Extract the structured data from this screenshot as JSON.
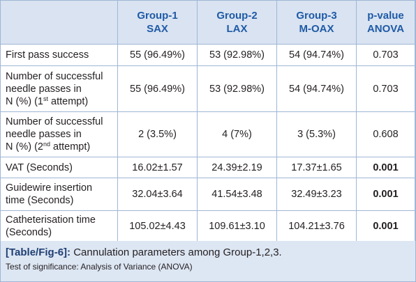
{
  "table": {
    "headers": [
      {
        "line1": "",
        "line2": ""
      },
      {
        "line1": "Group-1",
        "line2": "SAX"
      },
      {
        "line1": "Group-2",
        "line2": "LAX"
      },
      {
        "line1": "Group-3",
        "line2": "M-OAX"
      },
      {
        "line1": "p-value",
        "line2": "ANOVA"
      }
    ],
    "rows": [
      {
        "label": "First pass success",
        "g1": "55 (96.49%)",
        "g2": "53 (92.98%)",
        "g3": "54 (94.74%)",
        "p": "0.703"
      },
      {
        "label_a": "Number of successful",
        "label_b": "needle passes in",
        "label_c": "N (%) (1",
        "label_sup": "st",
        "label_d": " attempt)",
        "g1": "55 (96.49%)",
        "g2": "53 (92.98%)",
        "g3": "54 (94.74%)",
        "p": "0.703"
      },
      {
        "label_a": "Number of successful",
        "label_b": "needle passes in",
        "label_c": "N (%) (2",
        "label_sup": "nd",
        "label_d": " attempt)",
        "g1": "2 (3.5%)",
        "g2": "4 (7%)",
        "g3": "3 (5.3%)",
        "p": "0.608"
      },
      {
        "label": "VAT (Seconds)",
        "g1": "16.02±1.57",
        "g2": "24.39±2.19",
        "g3": "17.37±1.65",
        "p": "0.001"
      },
      {
        "label_a": "Guidewire insertion",
        "label_b": "time (Seconds)",
        "g1": "32.04±3.64",
        "g2": "41.54±3.48",
        "g3": "32.49±3.23",
        "p": "0.001"
      },
      {
        "label_a": "Catheterisation time",
        "label_b": "(Seconds)",
        "g1": "105.02±4.43",
        "g2": "109.61±3.10",
        "g3": "104.21±3.76",
        "p": "0.001"
      }
    ]
  },
  "caption": {
    "tag": "[Table/Fig-6]:",
    "text": " Cannulation parameters among Group-1,2,3.",
    "note": "Test of significance: Analysis of Variance (ANOVA)"
  },
  "colors": {
    "header_bg": "#d9e3f1",
    "header_text": "#1f5aa6",
    "border": "#9fb6d6",
    "caption_bg": "#dde6f3"
  }
}
